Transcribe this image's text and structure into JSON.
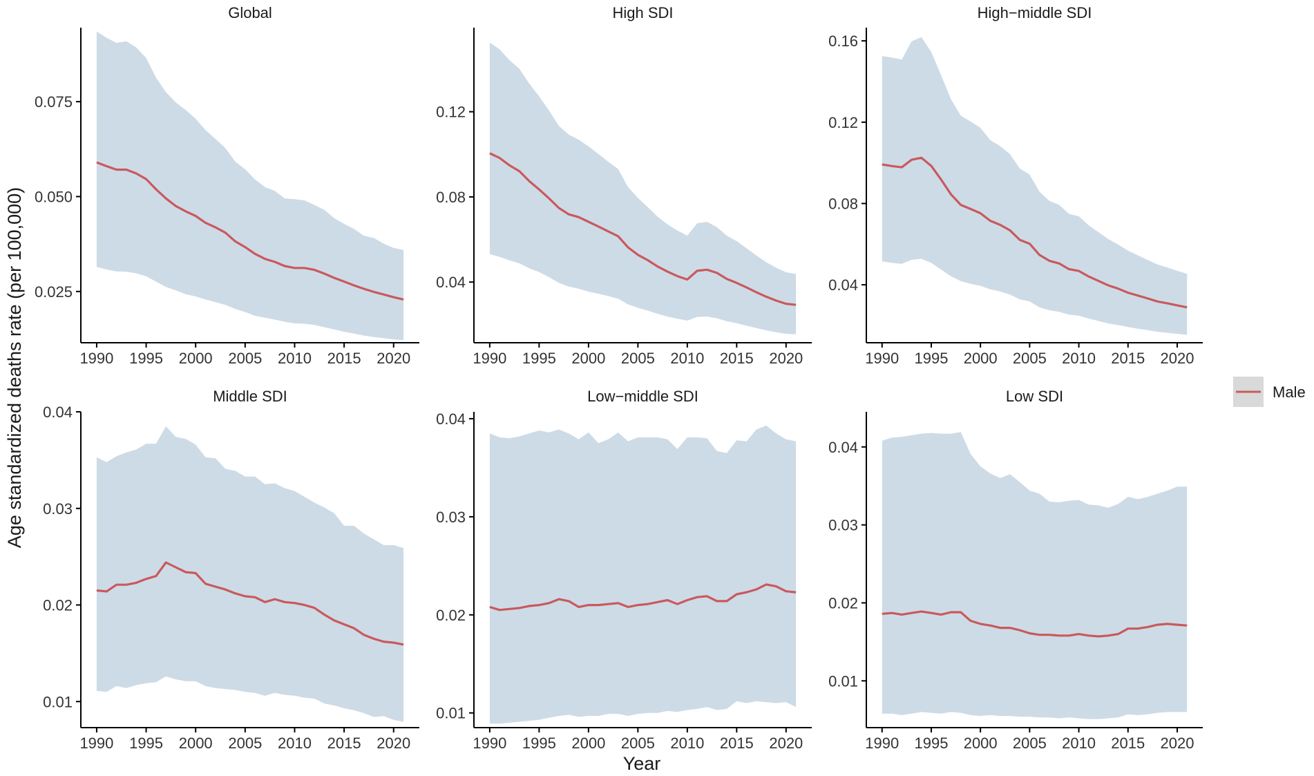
{
  "figure": {
    "xlabel": "Year",
    "ylabel": "Age standardized deaths rate (per 100,000)",
    "legend": {
      "label": "Male",
      "line_color": "#c9595c",
      "box_color": "#d9d9d9",
      "position": "right"
    },
    "colors": {
      "ribbon": "#cddbe7",
      "line": "#c9595c",
      "axis": "#000000"
    }
  },
  "chart_data": [
    {
      "type": "line",
      "title": "Global",
      "xlabel": "Year",
      "ylabel": "Age standardized deaths rate (per 100,000)",
      "xlim": [
        1988.4,
        2022.6
      ],
      "ylim": [
        0.0115,
        0.0945
      ],
      "xticks": [
        1990,
        1995,
        2000,
        2005,
        2010,
        2015,
        2020
      ],
      "xtick_labels": [
        "1990",
        "1995",
        "2000",
        "2005",
        "2010",
        "2015",
        "2020"
      ],
      "yticks": [
        0.025,
        0.05,
        0.075
      ],
      "ytick_labels": [
        "0.025",
        "0.050",
        "0.075"
      ],
      "x": [
        1990,
        1991,
        1992,
        1993,
        1994,
        1995,
        1996,
        1997,
        1998,
        1999,
        2000,
        2001,
        2002,
        2003,
        2004,
        2005,
        2006,
        2007,
        2008,
        2009,
        2010,
        2011,
        2012,
        2013,
        2014,
        2015,
        2016,
        2017,
        2018,
        2019,
        2020,
        2021
      ],
      "series": [
        {
          "name": "Male",
          "values": [
            0.059,
            0.058,
            0.0571,
            0.0571,
            0.0561,
            0.0546,
            0.0519,
            0.0495,
            0.0475,
            0.0461,
            0.0449,
            0.0431,
            0.0419,
            0.0405,
            0.0382,
            0.0367,
            0.0349,
            0.0336,
            0.0328,
            0.0317,
            0.0312,
            0.0312,
            0.0307,
            0.0297,
            0.0286,
            0.0276,
            0.0266,
            0.0257,
            0.0249,
            0.0242,
            0.0235,
            0.0229
          ],
          "lower": [
            0.0315,
            0.0308,
            0.0303,
            0.0302,
            0.0298,
            0.029,
            0.0276,
            0.0262,
            0.0253,
            0.0243,
            0.0237,
            0.0229,
            0.0222,
            0.0215,
            0.0204,
            0.0196,
            0.0186,
            0.0181,
            0.0176,
            0.017,
            0.0166,
            0.0165,
            0.0162,
            0.0156,
            0.015,
            0.0144,
            0.0139,
            0.0134,
            0.013,
            0.0127,
            0.0124,
            0.0122
          ],
          "upper": [
            0.0935,
            0.0918,
            0.0905,
            0.0909,
            0.0893,
            0.0865,
            0.0813,
            0.0775,
            0.0748,
            0.0728,
            0.0705,
            0.0675,
            0.0652,
            0.0628,
            0.0592,
            0.0572,
            0.0545,
            0.0525,
            0.0515,
            0.0495,
            0.0493,
            0.049,
            0.0478,
            0.0465,
            0.0443,
            0.0428,
            0.0415,
            0.0397,
            0.0391,
            0.0376,
            0.0365,
            0.0359
          ]
        }
      ]
    },
    {
      "type": "line",
      "title": "High SDI",
      "xlabel": "Year",
      "ylabel": "Age standardized deaths rate (per 100,000)",
      "xlim": [
        1988.4,
        2022.6
      ],
      "ylim": [
        0.0115,
        0.1595
      ],
      "xticks": [
        1990,
        1995,
        2000,
        2005,
        2010,
        2015,
        2020
      ],
      "xtick_labels": [
        "1990",
        "1995",
        "2000",
        "2005",
        "2010",
        "2015",
        "2020"
      ],
      "yticks": [
        0.04,
        0.08,
        0.12
      ],
      "ytick_labels": [
        "0.04",
        "0.08",
        "0.12"
      ],
      "x": [
        1990,
        1991,
        1992,
        1993,
        1994,
        1995,
        1996,
        1997,
        1998,
        1999,
        2000,
        2001,
        2002,
        2003,
        2004,
        2005,
        2006,
        2007,
        2008,
        2009,
        2010,
        2011,
        2012,
        2013,
        2014,
        2015,
        2016,
        2017,
        2018,
        2019,
        2020,
        2021
      ],
      "series": [
        {
          "name": "Male",
          "values": [
            0.1005,
            0.0983,
            0.0948,
            0.0921,
            0.0874,
            0.0835,
            0.0793,
            0.0748,
            0.0718,
            0.0705,
            0.0683,
            0.0661,
            0.0638,
            0.0615,
            0.0563,
            0.0528,
            0.0503,
            0.0473,
            0.0449,
            0.0428,
            0.0412,
            0.0453,
            0.0458,
            0.0443,
            0.0415,
            0.0396,
            0.0375,
            0.0352,
            0.0331,
            0.0313,
            0.0298,
            0.0293
          ],
          "lower": [
            0.0531,
            0.0518,
            0.0502,
            0.0488,
            0.0465,
            0.0447,
            0.0423,
            0.0396,
            0.0379,
            0.0369,
            0.0355,
            0.0345,
            0.0334,
            0.0322,
            0.0295,
            0.0279,
            0.0266,
            0.0251,
            0.0238,
            0.0228,
            0.0219,
            0.0236,
            0.0238,
            0.023,
            0.0216,
            0.0207,
            0.0195,
            0.0184,
            0.0173,
            0.0164,
            0.0157,
            0.0155
          ],
          "upper": [
            0.1525,
            0.1493,
            0.1442,
            0.1402,
            0.1332,
            0.1272,
            0.1206,
            0.1133,
            0.1093,
            0.1069,
            0.1037,
            0.1002,
            0.0965,
            0.0931,
            0.0846,
            0.0795,
            0.0752,
            0.0707,
            0.0671,
            0.0642,
            0.0618,
            0.0676,
            0.0683,
            0.0658,
            0.0618,
            0.0592,
            0.0559,
            0.0525,
            0.0493,
            0.0467,
            0.0446,
            0.0438
          ]
        }
      ]
    },
    {
      "type": "line",
      "title": "High−middle SDI",
      "xlabel": "Year",
      "ylabel": "Age standardized deaths rate (per 100,000)",
      "xlim": [
        1988.4,
        2022.6
      ],
      "ylim": [
        0.0115,
        0.1665
      ],
      "xticks": [
        1990,
        1995,
        2000,
        2005,
        2010,
        2015,
        2020
      ],
      "xtick_labels": [
        "1990",
        "1995",
        "2000",
        "2005",
        "2010",
        "2015",
        "2020"
      ],
      "yticks": [
        0.04,
        0.08,
        0.12,
        0.16
      ],
      "ytick_labels": [
        "0.04",
        "0.08",
        "0.12",
        "0.16"
      ],
      "x": [
        1990,
        1991,
        1992,
        1993,
        1994,
        1995,
        1996,
        1997,
        1998,
        1999,
        2000,
        2001,
        2002,
        2003,
        2004,
        2005,
        2006,
        2007,
        2008,
        2009,
        2010,
        2011,
        2012,
        2013,
        2014,
        2015,
        2016,
        2017,
        2018,
        2019,
        2020,
        2021
      ],
      "series": [
        {
          "name": "Male",
          "values": [
            0.0992,
            0.0984,
            0.0978,
            0.1015,
            0.1025,
            0.0985,
            0.0918,
            0.0845,
            0.0793,
            0.0773,
            0.0752,
            0.0715,
            0.0695,
            0.0668,
            0.0621,
            0.0602,
            0.0547,
            0.0518,
            0.0505,
            0.0477,
            0.0468,
            0.0441,
            0.0419,
            0.0397,
            0.0381,
            0.0361,
            0.0347,
            0.0333,
            0.0318,
            0.0309,
            0.0299,
            0.0289
          ],
          "lower": [
            0.0515,
            0.0508,
            0.0503,
            0.0523,
            0.0528,
            0.0508,
            0.0475,
            0.0442,
            0.0418,
            0.0405,
            0.0395,
            0.0378,
            0.0367,
            0.0352,
            0.0328,
            0.0318,
            0.0289,
            0.0275,
            0.0267,
            0.0253,
            0.0248,
            0.0234,
            0.0222,
            0.021,
            0.0202,
            0.0192,
            0.0184,
            0.0177,
            0.0169,
            0.0164,
            0.0159,
            0.0154
          ],
          "upper": [
            0.1525,
            0.1518,
            0.1508,
            0.1598,
            0.1618,
            0.1545,
            0.1431,
            0.1313,
            0.1232,
            0.1203,
            0.1172,
            0.1112,
            0.1082,
            0.1043,
            0.0972,
            0.0942,
            0.0858,
            0.0813,
            0.0793,
            0.0749,
            0.0737,
            0.0693,
            0.0659,
            0.0625,
            0.0598,
            0.0568,
            0.0545,
            0.0522,
            0.05,
            0.0485,
            0.0469,
            0.0454
          ]
        }
      ]
    },
    {
      "type": "line",
      "title": "Middle SDI",
      "xlabel": "Year",
      "ylabel": "Age standardized deaths rate (per 100,000)",
      "xlim": [
        1988.4,
        2022.6
      ],
      "ylim": [
        0.0073,
        0.04
      ],
      "xticks": [
        1990,
        1995,
        2000,
        2005,
        2010,
        2015,
        2020
      ],
      "xtick_labels": [
        "1990",
        "1995",
        "2000",
        "2005",
        "2010",
        "2015",
        "2020"
      ],
      "yticks": [
        0.01,
        0.02,
        0.03,
        0.04
      ],
      "ytick_labels": [
        "0.01",
        "0.02",
        "0.03",
        "0.04"
      ],
      "x": [
        1990,
        1991,
        1992,
        1993,
        1994,
        1995,
        1996,
        1997,
        1998,
        1999,
        2000,
        2001,
        2002,
        2003,
        2004,
        2005,
        2006,
        2007,
        2008,
        2009,
        2010,
        2011,
        2012,
        2013,
        2014,
        2015,
        2016,
        2017,
        2018,
        2019,
        2020,
        2021
      ],
      "series": [
        {
          "name": "Male",
          "values": [
            0.0215,
            0.0214,
            0.0221,
            0.0221,
            0.0223,
            0.0227,
            0.023,
            0.0244,
            0.0239,
            0.0234,
            0.0233,
            0.0222,
            0.0219,
            0.0216,
            0.0212,
            0.0209,
            0.0208,
            0.0203,
            0.0206,
            0.0203,
            0.0202,
            0.02,
            0.0197,
            0.019,
            0.0184,
            0.018,
            0.0176,
            0.0169,
            0.0165,
            0.0162,
            0.0161,
            0.0159
          ],
          "lower": [
            0.0111,
            0.011,
            0.0116,
            0.0114,
            0.0117,
            0.0119,
            0.012,
            0.0126,
            0.0123,
            0.0121,
            0.0121,
            0.0116,
            0.0114,
            0.0113,
            0.0112,
            0.011,
            0.0109,
            0.0106,
            0.0109,
            0.0107,
            0.0106,
            0.0104,
            0.0103,
            0.0098,
            0.0096,
            0.0093,
            0.0091,
            0.0088,
            0.0084,
            0.0085,
            0.0081,
            0.0079
          ],
          "upper": [
            0.0353,
            0.0348,
            0.0354,
            0.0358,
            0.0361,
            0.0367,
            0.0367,
            0.0385,
            0.0374,
            0.0372,
            0.0366,
            0.0353,
            0.0352,
            0.0341,
            0.0339,
            0.0333,
            0.0333,
            0.0325,
            0.0326,
            0.0321,
            0.0318,
            0.0312,
            0.0306,
            0.0301,
            0.0295,
            0.0282,
            0.0282,
            0.0274,
            0.0268,
            0.0262,
            0.0262,
            0.0259
          ]
        }
      ]
    },
    {
      "type": "line",
      "title": "Low−middle SDI",
      "xlabel": "Year",
      "ylabel": "Age standardized deaths rate (per 100,000)",
      "xlim": [
        1988.4,
        2022.6
      ],
      "ylim": [
        0.0085,
        0.0407
      ],
      "xticks": [
        1990,
        1995,
        2000,
        2005,
        2010,
        2015,
        2020
      ],
      "xtick_labels": [
        "1990",
        "1995",
        "2000",
        "2005",
        "2010",
        "2015",
        "2020"
      ],
      "yticks": [
        0.01,
        0.02,
        0.03,
        0.04
      ],
      "ytick_labels": [
        "0.01",
        "0.02",
        "0.03",
        "0.04"
      ],
      "x": [
        1990,
        1991,
        1992,
        1993,
        1994,
        1995,
        1996,
        1997,
        1998,
        1999,
        2000,
        2001,
        2002,
        2003,
        2004,
        2005,
        2006,
        2007,
        2008,
        2009,
        2010,
        2011,
        2012,
        2013,
        2014,
        2015,
        2016,
        2017,
        2018,
        2019,
        2020,
        2021
      ],
      "series": [
        {
          "name": "Male",
          "values": [
            0.0208,
            0.0205,
            0.0206,
            0.0207,
            0.0209,
            0.021,
            0.0212,
            0.0216,
            0.0214,
            0.0208,
            0.021,
            0.021,
            0.0211,
            0.0212,
            0.0208,
            0.021,
            0.0211,
            0.0213,
            0.0215,
            0.0211,
            0.0215,
            0.0218,
            0.0219,
            0.0214,
            0.0214,
            0.0221,
            0.0223,
            0.0226,
            0.0231,
            0.0229,
            0.0224,
            0.0223
          ],
          "lower": [
            0.0089,
            0.0089,
            0.009,
            0.0091,
            0.0092,
            0.0093,
            0.0095,
            0.0097,
            0.0098,
            0.0096,
            0.0097,
            0.0097,
            0.0099,
            0.0099,
            0.0097,
            0.0099,
            0.01,
            0.01,
            0.0102,
            0.0101,
            0.0103,
            0.0104,
            0.0106,
            0.0103,
            0.0104,
            0.0112,
            0.011,
            0.0112,
            0.0111,
            0.011,
            0.0111,
            0.0106
          ],
          "upper": [
            0.0385,
            0.0381,
            0.038,
            0.0382,
            0.0385,
            0.0388,
            0.0386,
            0.0389,
            0.0385,
            0.0379,
            0.0386,
            0.0375,
            0.0379,
            0.0386,
            0.0377,
            0.0381,
            0.0381,
            0.0381,
            0.0379,
            0.0369,
            0.0381,
            0.0381,
            0.038,
            0.0367,
            0.0365,
            0.0378,
            0.0377,
            0.0389,
            0.0393,
            0.0385,
            0.0379,
            0.0377
          ]
        }
      ]
    },
    {
      "type": "line",
      "title": "Low SDI",
      "xlabel": "Year",
      "ylabel": "Age standardized deaths rate (per 100,000)",
      "xlim": [
        1988.4,
        2022.6
      ],
      "ylim": [
        0.004,
        0.0445
      ],
      "xticks": [
        1990,
        1995,
        2000,
        2005,
        2010,
        2015,
        2020
      ],
      "xtick_labels": [
        "1990",
        "1995",
        "2000",
        "2005",
        "2010",
        "2015",
        "2020"
      ],
      "yticks": [
        0.01,
        0.02,
        0.03,
        0.04
      ],
      "ytick_labels": [
        "0.01",
        "0.02",
        "0.03",
        "0.04"
      ],
      "x": [
        1990,
        1991,
        1992,
        1993,
        1994,
        1995,
        1996,
        1997,
        1998,
        1999,
        2000,
        2001,
        2002,
        2003,
        2004,
        2005,
        2006,
        2007,
        2008,
        2009,
        2010,
        2011,
        2012,
        2013,
        2014,
        2015,
        2016,
        2017,
        2018,
        2019,
        2020,
        2021
      ],
      "series": [
        {
          "name": "Male",
          "values": [
            0.0186,
            0.0187,
            0.0185,
            0.0187,
            0.0189,
            0.0187,
            0.0185,
            0.0188,
            0.0188,
            0.0177,
            0.0173,
            0.0171,
            0.0168,
            0.0168,
            0.0165,
            0.0161,
            0.0159,
            0.0159,
            0.0158,
            0.0158,
            0.016,
            0.0158,
            0.0157,
            0.0158,
            0.016,
            0.0167,
            0.0167,
            0.0169,
            0.0172,
            0.0173,
            0.0172,
            0.0171
          ],
          "lower": [
            0.0058,
            0.0058,
            0.0056,
            0.0058,
            0.006,
            0.0059,
            0.0058,
            0.006,
            0.0059,
            0.0056,
            0.0055,
            0.0056,
            0.0055,
            0.0055,
            0.0054,
            0.0054,
            0.0053,
            0.0053,
            0.0052,
            0.0053,
            0.0052,
            0.0051,
            0.0051,
            0.0052,
            0.0053,
            0.0057,
            0.0056,
            0.0057,
            0.0059,
            0.006,
            0.006,
            0.006
          ],
          "upper": [
            0.0408,
            0.0412,
            0.0413,
            0.0415,
            0.0417,
            0.0418,
            0.0417,
            0.0417,
            0.0419,
            0.0391,
            0.0375,
            0.0366,
            0.036,
            0.0365,
            0.0355,
            0.0344,
            0.034,
            0.033,
            0.0329,
            0.0331,
            0.0332,
            0.0326,
            0.0325,
            0.0322,
            0.0327,
            0.0336,
            0.0333,
            0.0336,
            0.034,
            0.0344,
            0.0349,
            0.0349
          ]
        }
      ]
    }
  ]
}
